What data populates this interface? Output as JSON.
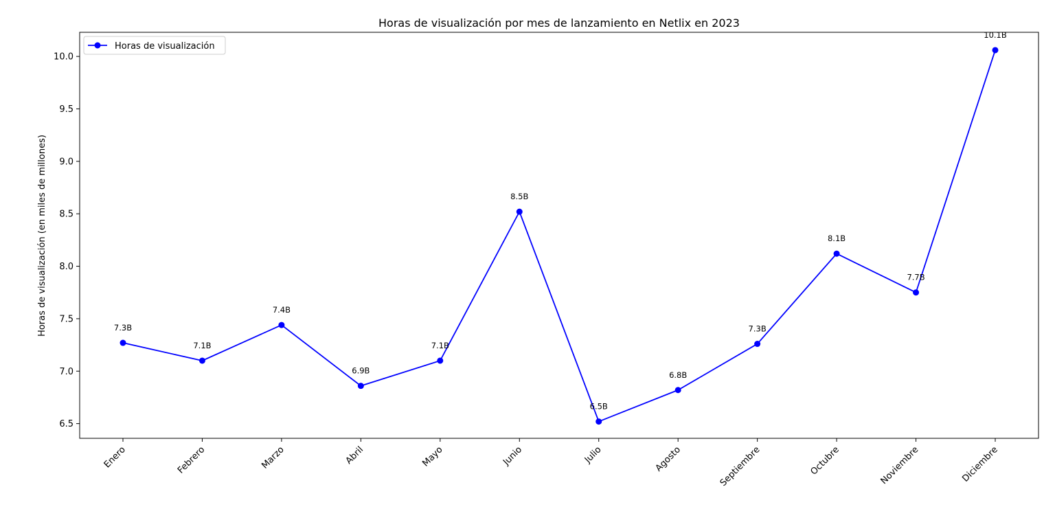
{
  "chart_data": {
    "type": "line",
    "title": "Horas de visualización por mes de lanzamiento en Netlix en 2023",
    "xlabel": "",
    "ylabel": "Horas de visualización (en miles de millones)",
    "categories": [
      "Enero",
      "Febrero",
      "Marzo",
      "Abril",
      "Mayo",
      "Junio",
      "Julio",
      "Agosto",
      "Septiembre",
      "Octubre",
      "Noviembre",
      "Diciembre"
    ],
    "series": [
      {
        "name": "Horas de visualización",
        "color": "#0000ff",
        "values": [
          7.27,
          7.1,
          7.44,
          6.86,
          7.1,
          8.52,
          6.52,
          6.82,
          7.26,
          8.12,
          7.75,
          10.06
        ],
        "labels": [
          "7.3B",
          "7.1B",
          "7.4B",
          "6.9B",
          "7.1B",
          "8.5B",
          "6.5B",
          "6.8B",
          "7.3B",
          "8.1B",
          "7.7B",
          "10.1B"
        ]
      }
    ],
    "ylim": [
      6.36,
      10.23
    ],
    "yticks": [
      6.5,
      7.0,
      7.5,
      8.0,
      8.5,
      9.0,
      9.5,
      10.0
    ],
    "ytick_labels": [
      "6.5",
      "7.0",
      "7.5",
      "8.0",
      "8.5",
      "9.0",
      "9.5",
      "10.0"
    ],
    "grid": false,
    "legend": "top-left"
  }
}
